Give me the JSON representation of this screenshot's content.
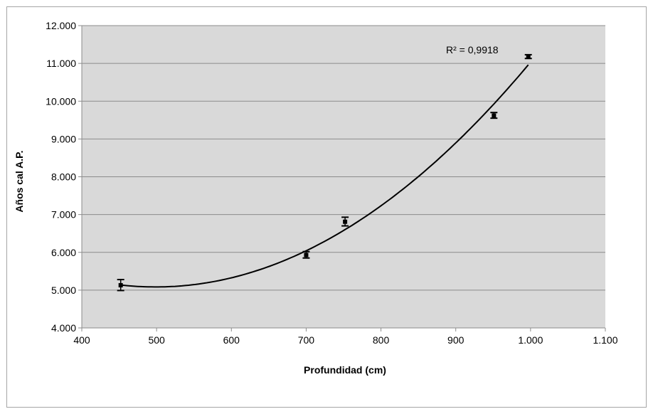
{
  "chart_data": {
    "type": "scatter",
    "title": "",
    "xlabel": "Profundidad (cm)",
    "ylabel": "Años cal A.P.",
    "xlim": [
      400,
      1100
    ],
    "ylim": [
      4000,
      12000
    ],
    "x_ticks": [
      400,
      500,
      600,
      700,
      800,
      900,
      1000,
      1100
    ],
    "x_tick_labels": [
      "400",
      "500",
      "600",
      "700",
      "800",
      "900",
      "1.000",
      "1.100"
    ],
    "y_ticks": [
      4000,
      5000,
      6000,
      7000,
      8000,
      9000,
      10000,
      11000,
      12000
    ],
    "y_tick_labels": [
      "4.000",
      "5.000",
      "6.000",
      "7.000",
      "8.000",
      "9.000",
      "10.000",
      "11.000",
      "12.000"
    ],
    "grid": "horizontal",
    "legend": "none",
    "points": [
      {
        "x": 452,
        "y": 5130,
        "err_low": 4990,
        "err_high": 5280
      },
      {
        "x": 700,
        "y": 5930,
        "err_low": 5850,
        "err_high": 6020
      },
      {
        "x": 752,
        "y": 6810,
        "err_low": 6700,
        "err_high": 6930
      },
      {
        "x": 951,
        "y": 9620,
        "err_low": 9550,
        "err_high": 9700
      },
      {
        "x": 997,
        "y": 11180,
        "err_low": 11130,
        "err_high": 11230
      }
    ],
    "trendline": {
      "type": "polynomial",
      "order": 2,
      "r2_label": "R² = 0,9918"
    },
    "colors": {
      "plot_area": "#d9d9d9",
      "gridline": "#8c8c8c",
      "marker": "#000000",
      "frame": "#a6a6a6"
    }
  }
}
